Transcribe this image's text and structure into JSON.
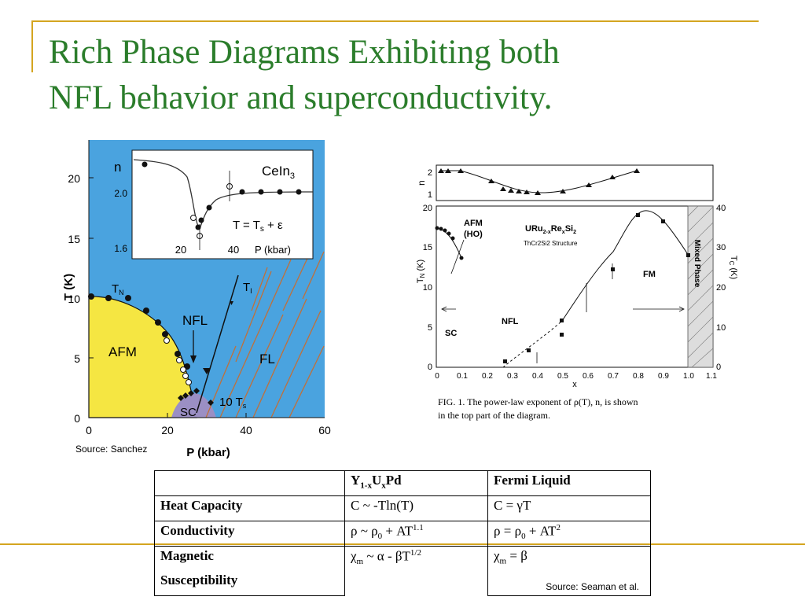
{
  "slide": {
    "title_line1": "Rich Phase Diagrams Exhibiting both",
    "title_line2": "NFL behavior and superconductivity."
  },
  "colors": {
    "title": "#2b7d2b",
    "accent_rule": "#d4a520",
    "afm_region": "#f5e642",
    "sc_region": "#9b8fc4",
    "background_region": "#4aa3df",
    "fl_hatch": "#c0703a"
  },
  "left_figure": {
    "y_axis_label": "T (K)",
    "x_axis_label": "P (kbar)",
    "y_ticks": [
      "0",
      "5",
      "10",
      "15",
      "20"
    ],
    "x_ticks": [
      "0",
      "20",
      "40",
      "60"
    ],
    "label_tn": "T",
    "label_tn_sub": "N",
    "label_ti": "T",
    "label_ti_sub": "I",
    "label_afm": "AFM",
    "label_nfl": "NFL",
    "label_fl": "FL",
    "label_sc": "SC",
    "label_10ts": "10 T",
    "label_10ts_sub": "s",
    "inset": {
      "n_label": "n",
      "compound": "CeIn",
      "compound_sub": "3",
      "y_ticks": [
        "2.0",
        "1.6"
      ],
      "x_ticks": [
        "20",
        "40"
      ],
      "x_label": "P (kbar)",
      "eq_prefix": "T = T",
      "eq_sub": "s",
      "eq_suffix": " + ε"
    }
  },
  "source_left": "Source: Sanchez",
  "right_figure": {
    "top_n_label": "n",
    "top_ticks": [
      "2",
      "1"
    ],
    "left_axis_label": "T",
    "left_axis_sub": "N",
    "left_axis_suffix": " (K)",
    "left_ticks": [
      "0",
      "5",
      "10",
      "15",
      "20"
    ],
    "right_axis_label": "T",
    "right_axis_sub": "C",
    "right_axis_suffix": " (K)",
    "right_ticks": [
      "0",
      "10",
      "20",
      "30",
      "40"
    ],
    "x_ticks": [
      "0",
      "0.1",
      "0.2",
      "0.3",
      "0.4",
      "0.5",
      "0.6",
      "0.7",
      "0.8",
      "0.9",
      "1.0",
      "1.1"
    ],
    "x_label": "x",
    "label_afm": "AFM",
    "label_ho": "(HO)",
    "compound": "URu",
    "compound_sub": "2-x",
    "compound_mid": "Re",
    "compound_sub2": "x",
    "compound_end": "Si",
    "compound_sub3": "2",
    "structure": "ThCr2Si2 Structure",
    "label_sc": "SC",
    "label_nfl": "NFL",
    "label_fm": "FM",
    "label_mixed": "Mixed Phase",
    "caption_line1": "FIG. 1.  The power-law exponent of ρ(T), n, is shown",
    "caption_line2": "in the top part of the diagram."
  },
  "table": {
    "header": [
      "",
      "Y1-xUxPd",
      "Fermi Liquid"
    ],
    "rows": [
      {
        "label": "Heat Capacity",
        "yupd": "C ~ -Tln(T)",
        "fl": "C = γT"
      },
      {
        "label": "Conductivity",
        "yupd": "ρ ~ ρ0 + AT1.1",
        "fl": "ρ = ρ0 + AT2"
      },
      {
        "label": "Magnetic Susceptibility",
        "yupd": "χm ~ α - βT1/2",
        "fl": "χm = β"
      }
    ],
    "header_parts": {
      "y": "Y",
      "s1": "1-x",
      "u": "U",
      "s2": "x",
      "pd": "Pd",
      "fl": "Fermi Liquid"
    },
    "row_labels": [
      "Heat Capacity",
      "Conductivity",
      "Magnetic",
      "Susceptibility"
    ],
    "hc_yupd": "C ~ -Tln(T)",
    "hc_fl": "C = γT",
    "cond_yupd_a": "ρ ~ ρ",
    "cond_yupd_s": "0",
    "cond_yupd_b": " + AT",
    "cond_yupd_p": "1.1",
    "cond_fl_a": "ρ = ρ",
    "cond_fl_s": "0",
    "cond_fl_b": " + AT",
    "cond_fl_p": "2",
    "mag_yupd_a": "χ",
    "mag_yupd_s": "m",
    "mag_yupd_b": " ~ α - βT",
    "mag_yupd_p": "1/2",
    "mag_fl_a": "χ",
    "mag_fl_s": "m",
    "mag_fl_b": " = β"
  },
  "source_right": "Source: Seaman et al."
}
